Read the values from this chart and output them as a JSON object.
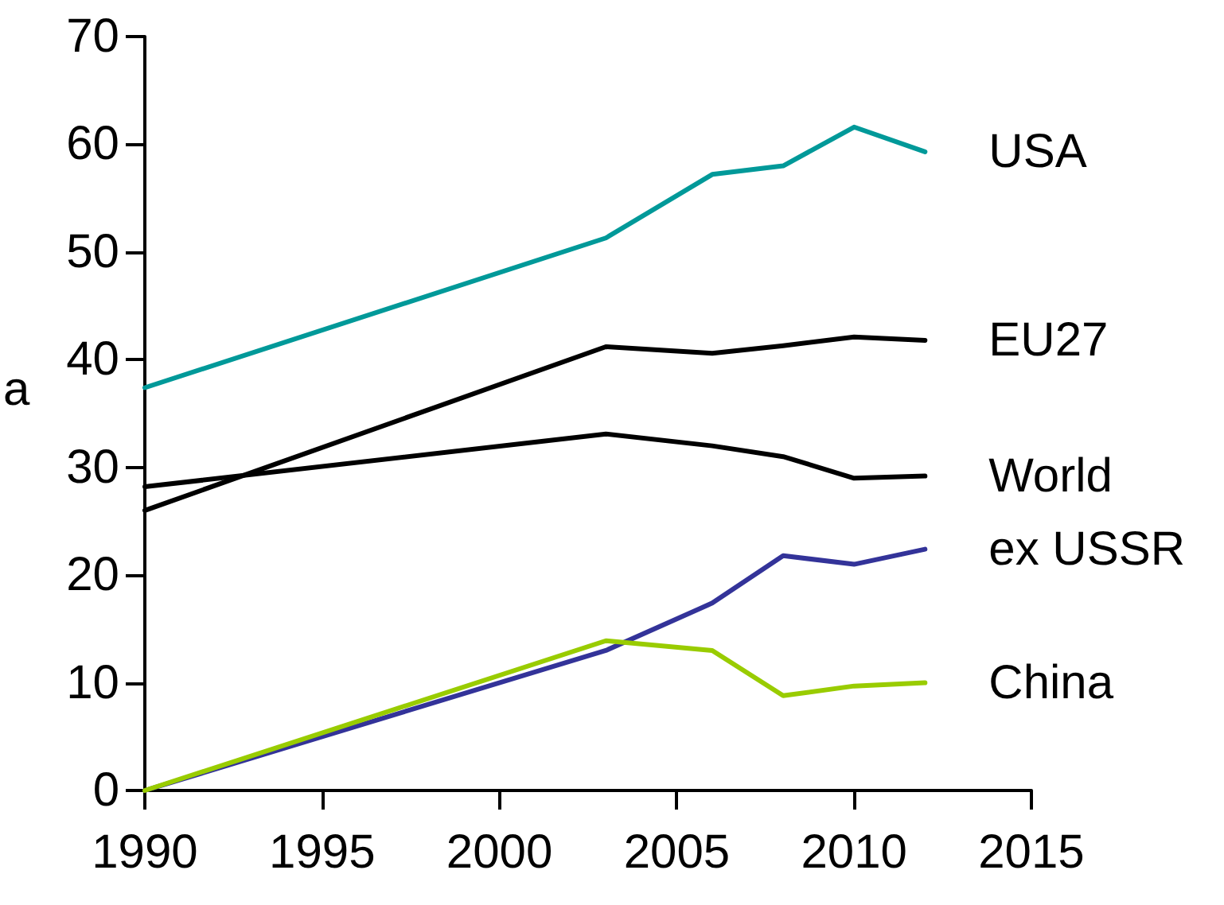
{
  "chart_data": {
    "type": "line",
    "ylabel": "a",
    "x": [
      1990,
      2003,
      2006,
      2008,
      2010,
      2012
    ],
    "series": [
      {
        "name": "USA",
        "color": "#009999",
        "values": [
          37.4,
          51.3,
          57.2,
          58.0,
          61.6,
          59.3
        ]
      },
      {
        "name": "EU27",
        "color": "#000000",
        "values": [
          26.0,
          41.2,
          40.6,
          41.3,
          42.1,
          41.8
        ]
      },
      {
        "name": "World",
        "color": "#000000",
        "values": [
          28.2,
          33.1,
          32.0,
          31.0,
          29.0,
          29.2
        ]
      },
      {
        "name": "ex USSR",
        "color": "#333399",
        "values": [
          0,
          13.0,
          17.4,
          21.8,
          21.0,
          22.4
        ]
      },
      {
        "name": "China",
        "color": "#99cc00",
        "values": [
          0,
          13.9,
          13.0,
          8.8,
          9.7,
          10.0
        ]
      }
    ],
    "xlim": [
      1990,
      2015
    ],
    "xticks": [
      1990,
      1995,
      2000,
      2005,
      2010,
      2015
    ],
    "ylim": [
      0,
      70
    ],
    "yticks": [
      0,
      10,
      20,
      30,
      40,
      50,
      60,
      70
    ],
    "grid": false,
    "legend": false,
    "marker": "none",
    "line_style": "solid"
  }
}
